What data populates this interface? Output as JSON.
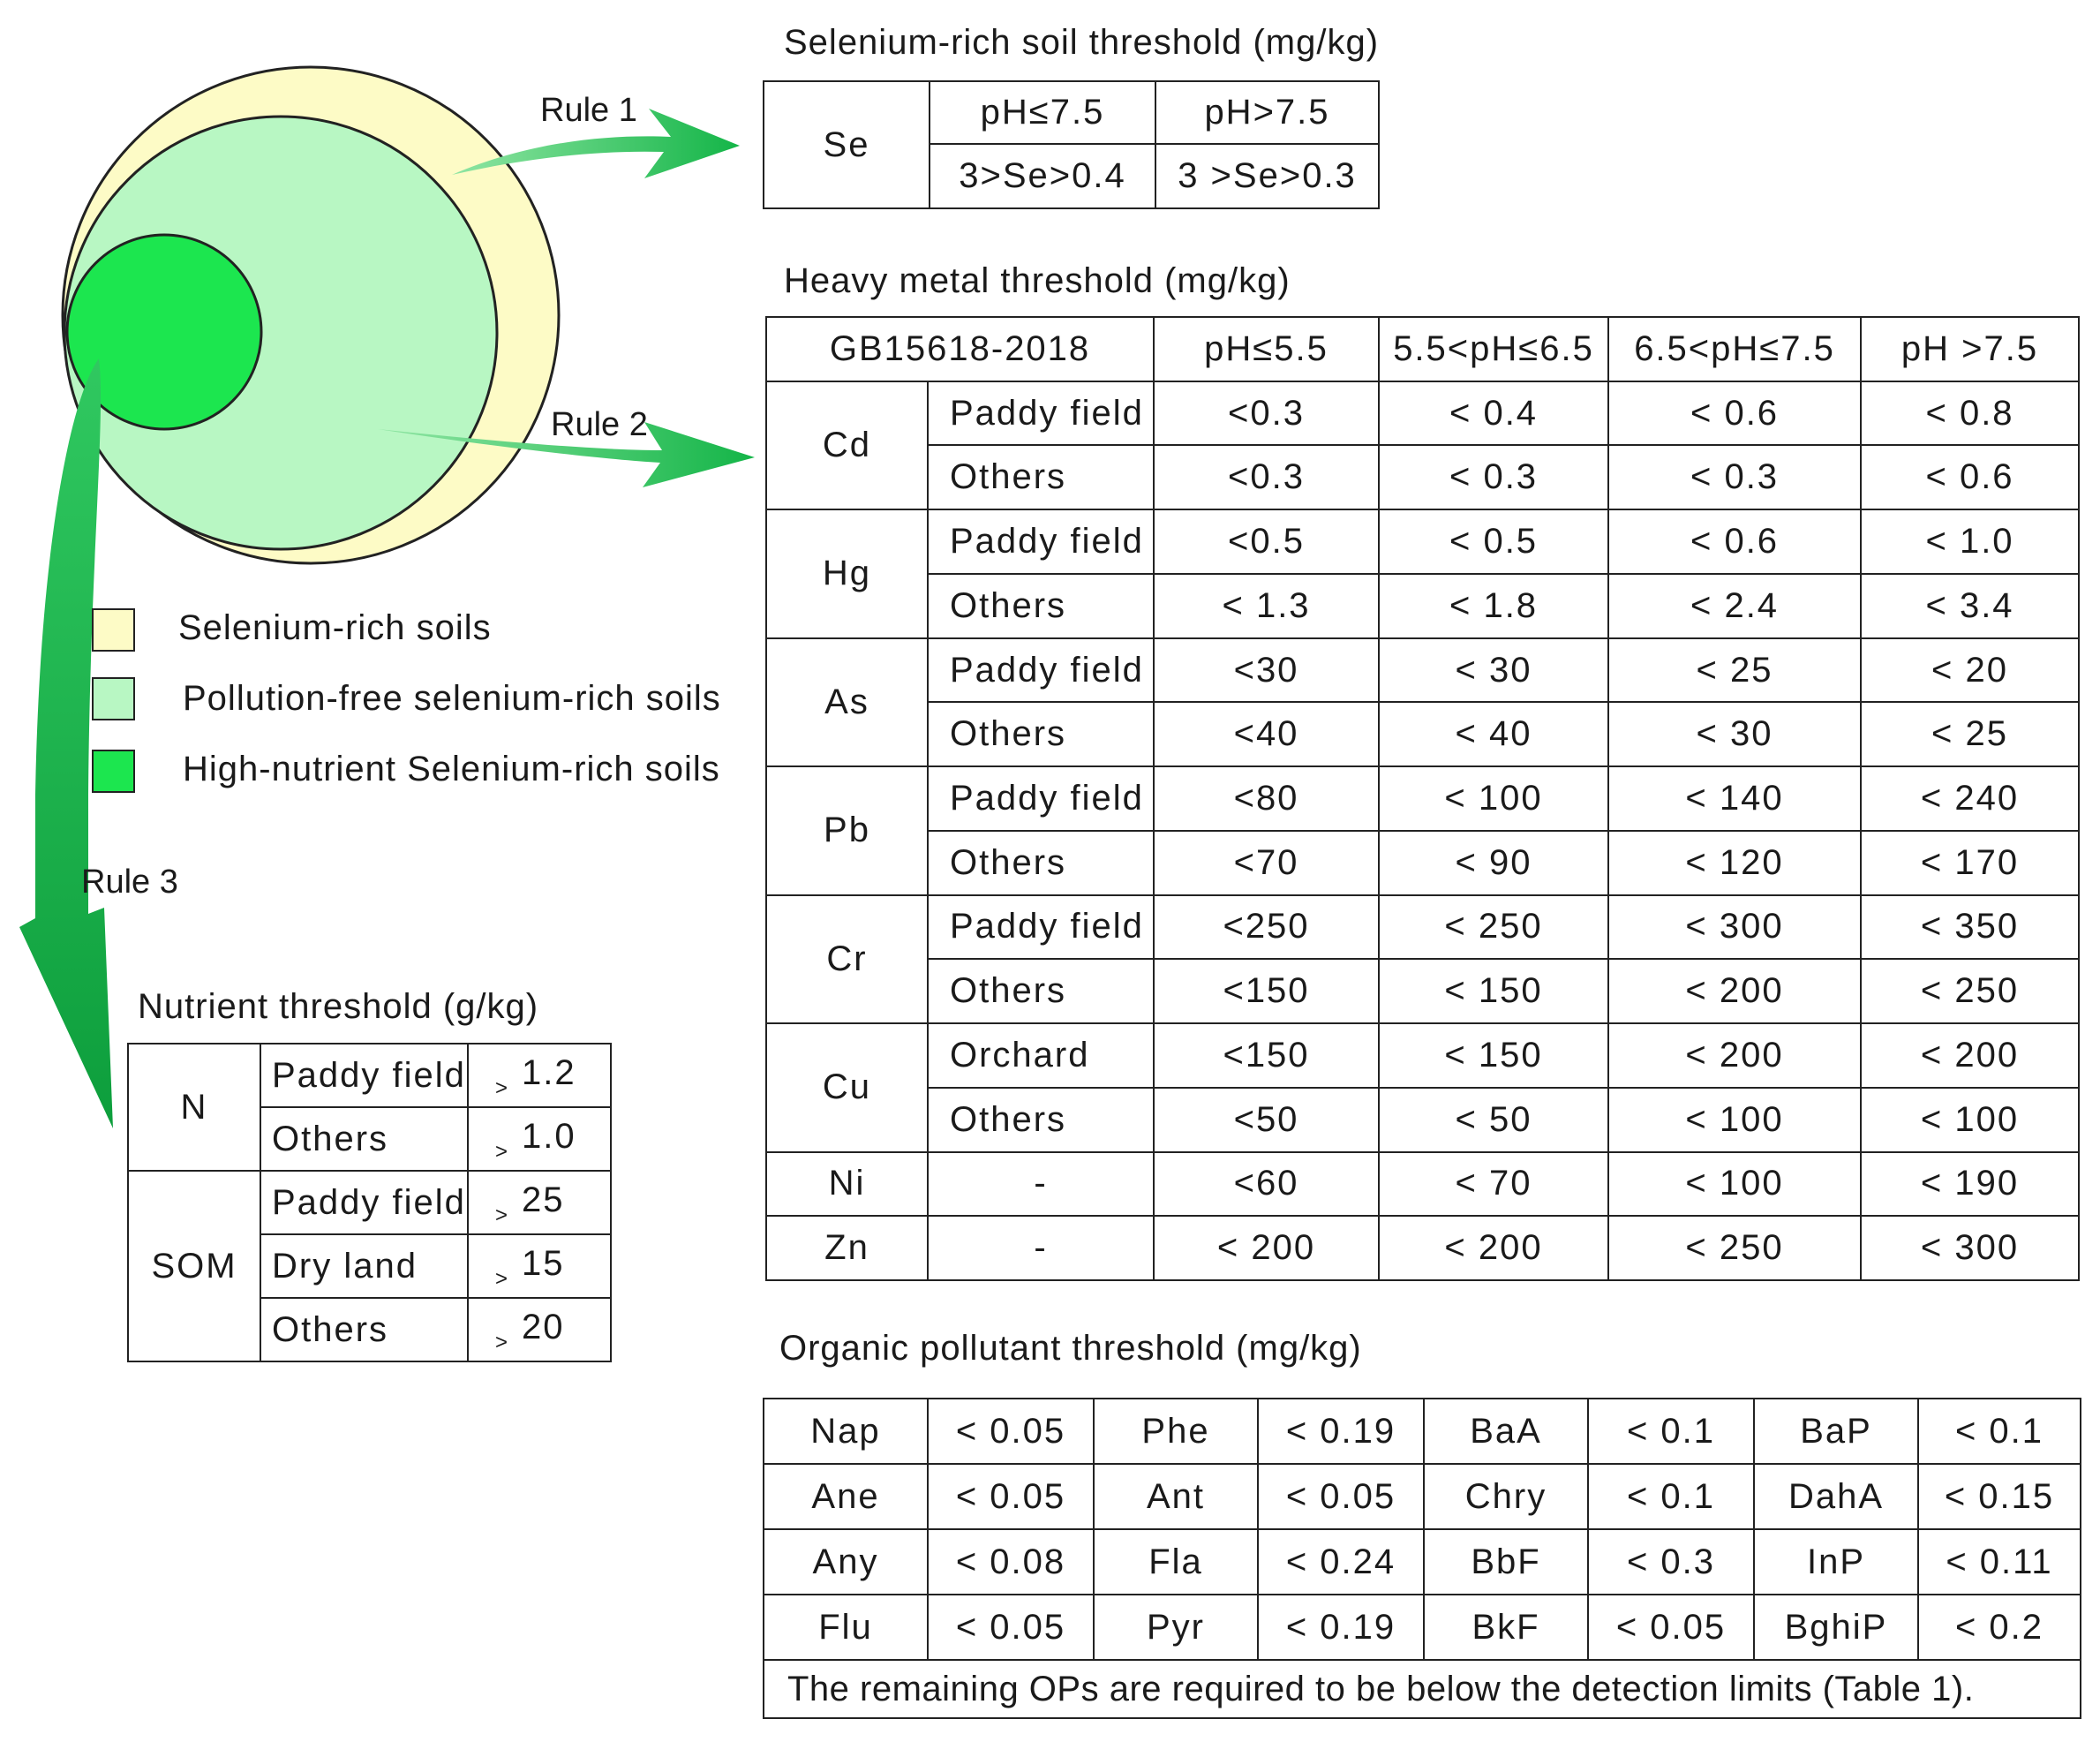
{
  "colors": {
    "selenium_rich": "#fdfbc6",
    "pollution_free": "#b8f7c3",
    "high_nutrient": "#1ce64f",
    "arrow": "#1fbe55"
  },
  "diagram": {
    "rule1": "Rule 1",
    "rule2": "Rule 2",
    "rule3": "Rule 3"
  },
  "legend": [
    {
      "label": "Selenium-rich soils"
    },
    {
      "label": "Pollution-free selenium-rich soils"
    },
    {
      "label": "High-nutrient Selenium-rich soils"
    }
  ],
  "se_table": {
    "title": "Selenium-rich soil threshold (mg/kg)",
    "element": "Se",
    "headers": [
      "pH≤7.5",
      "pH>7.5"
    ],
    "values": [
      "3>Se>0.4",
      "3 >Se>0.3"
    ]
  },
  "heavy_metal": {
    "title": "Heavy metal threshold (mg/kg)",
    "standard": "GB15618-2018",
    "headers": [
      "pH≤5.5",
      "5.5<pH≤6.5",
      "6.5<pH≤7.5",
      "pH >7.5"
    ],
    "rows": [
      {
        "element": "Cd",
        "sub": [
          {
            "type": "Paddy field",
            "values": [
              "<0.3",
              "< 0.4",
              "< 0.6",
              "< 0.8"
            ]
          },
          {
            "type": "Others",
            "values": [
              "<0.3",
              "< 0.3",
              "< 0.3",
              "< 0.6"
            ]
          }
        ]
      },
      {
        "element": "Hg",
        "sub": [
          {
            "type": "Paddy field",
            "values": [
              "<0.5",
              "< 0.5",
              "< 0.6",
              "< 1.0"
            ]
          },
          {
            "type": "Others",
            "values": [
              "< 1.3",
              "< 1.8",
              "< 2.4",
              "< 3.4"
            ]
          }
        ]
      },
      {
        "element": "As",
        "sub": [
          {
            "type": "Paddy field",
            "values": [
              "<30",
              "< 30",
              "< 25",
              "< 20"
            ]
          },
          {
            "type": "Others",
            "values": [
              "<40",
              "< 40",
              "< 30",
              "< 25"
            ]
          }
        ]
      },
      {
        "element": "Pb",
        "sub": [
          {
            "type": "Paddy field",
            "values": [
              "<80",
              "< 100",
              "< 140",
              "< 240"
            ]
          },
          {
            "type": "Others",
            "values": [
              "<70",
              "< 90",
              "< 120",
              "< 170"
            ]
          }
        ]
      },
      {
        "element": "Cr",
        "sub": [
          {
            "type": "Paddy field",
            "values": [
              "<250",
              "< 250",
              "< 300",
              "< 350"
            ]
          },
          {
            "type": "Others",
            "values": [
              "<150",
              "< 150",
              "< 200",
              "< 250"
            ]
          }
        ]
      },
      {
        "element": "Cu",
        "sub": [
          {
            "type": "Orchard",
            "values": [
              "<150",
              "< 150",
              "< 200",
              "< 200"
            ]
          },
          {
            "type": "Others",
            "values": [
              "<50",
              "< 50",
              "< 100",
              "< 100"
            ]
          }
        ]
      },
      {
        "element": "Ni",
        "sub": [
          {
            "type": "-",
            "values": [
              "<60",
              "< 70",
              "< 100",
              "< 190"
            ]
          }
        ]
      },
      {
        "element": "Zn",
        "sub": [
          {
            "type": "-",
            "values": [
              "< 200",
              "< 200",
              "< 250",
              "< 300"
            ]
          }
        ]
      }
    ]
  },
  "nutrient": {
    "title": "Nutrient threshold (g/kg)",
    "gt_symbol": ">",
    "groups": [
      {
        "name": "N",
        "rows": [
          {
            "type": "Paddy field",
            "value": "1.2"
          },
          {
            "type": "Others",
            "value": "1.0"
          }
        ]
      },
      {
        "name": "SOM",
        "rows": [
          {
            "type": "Paddy field",
            "value": "25"
          },
          {
            "type": "Dry land",
            "value": "15"
          },
          {
            "type": "Others",
            "value": "20"
          }
        ]
      }
    ]
  },
  "organic": {
    "title": "Organic pollutant threshold (mg/kg)",
    "rows": [
      [
        [
          "Nap",
          "< 0.05"
        ],
        [
          "Phe",
          "< 0.19"
        ],
        [
          "BaA",
          "< 0.1"
        ],
        [
          "BaP",
          "< 0.1"
        ]
      ],
      [
        [
          "Ane",
          "< 0.05"
        ],
        [
          "Ant",
          "< 0.05"
        ],
        [
          "Chry",
          "< 0.1"
        ],
        [
          "DahA",
          "< 0.15"
        ]
      ],
      [
        [
          "Any",
          "< 0.08"
        ],
        [
          "Fla",
          "< 0.24"
        ],
        [
          "BbF",
          "< 0.3"
        ],
        [
          "InP",
          "< 0.11"
        ]
      ],
      [
        [
          "Flu",
          "< 0.05"
        ],
        [
          "Pyr",
          "< 0.19"
        ],
        [
          "BkF",
          "< 0.05"
        ],
        [
          "BghiP",
          "< 0.2"
        ]
      ]
    ],
    "footer": "The remaining OPs  are required to be  below the detection limits (Table 1)."
  }
}
